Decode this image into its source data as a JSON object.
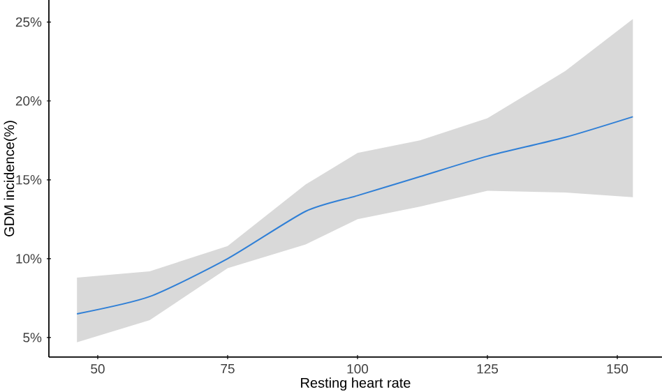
{
  "chart_data": {
    "type": "line",
    "xlabel": "Resting heart rate",
    "ylabel": "GDM incidence(%)",
    "xlim": [
      40.6,
      158.6
    ],
    "ylim": [
      3.76,
      26.4
    ],
    "xticks": [
      50,
      75,
      100,
      125,
      150
    ],
    "yticks": [
      {
        "value": 5,
        "label": "5%"
      },
      {
        "value": 10,
        "label": "10%"
      },
      {
        "value": 15,
        "label": "15%"
      },
      {
        "value": 20,
        "label": "20%"
      },
      {
        "value": 25,
        "label": "25%"
      }
    ],
    "grid": false,
    "marker": "none",
    "line_style": "solid",
    "series": [
      {
        "color": "#2f7fd6",
        "x": [
          46,
          60,
          75,
          90,
          100,
          112,
          125,
          140,
          153
        ],
        "values": [
          6.5,
          7.6,
          10.0,
          13.0,
          14.0,
          15.2,
          16.5,
          17.7,
          19.0
        ],
        "lower": [
          4.7,
          6.1,
          9.4,
          10.9,
          12.5,
          13.3,
          14.3,
          14.2,
          13.9
        ],
        "upper": [
          8.8,
          9.2,
          10.8,
          14.7,
          16.7,
          17.5,
          18.9,
          21.9,
          25.2
        ]
      }
    ]
  }
}
